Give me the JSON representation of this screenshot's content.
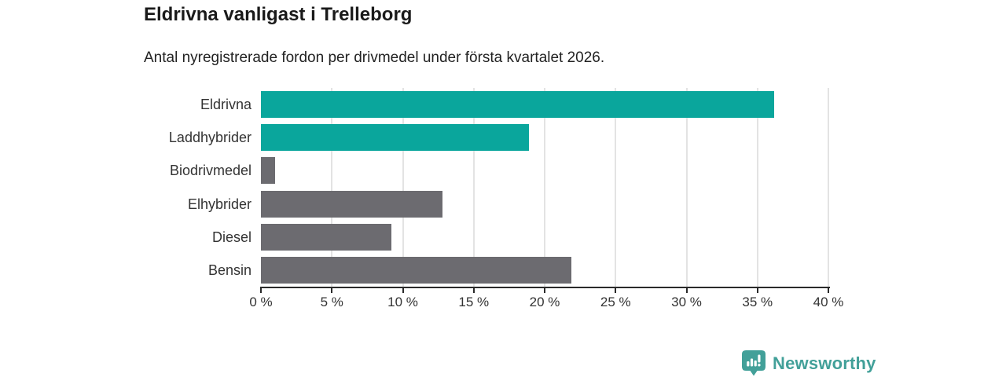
{
  "header": {
    "title": "Eldrivna vanligast i Trelleborg",
    "subtitle": "Antal nyregistrerade fordon per drivmedel under första kvartalet 2026."
  },
  "chart_data": {
    "type": "bar",
    "orientation": "horizontal",
    "title": "Eldrivna vanligast i Trelleborg",
    "subtitle": "Antal nyregistrerade fordon per drivmedel under första kvartalet 2026.",
    "categories": [
      "Eldrivna",
      "Laddhybrider",
      "Biodrivmedel",
      "Elhybrider",
      "Diesel",
      "Bensin"
    ],
    "values": [
      36.2,
      18.9,
      1.0,
      12.8,
      9.2,
      21.9
    ],
    "unit": "%",
    "xlim": [
      0,
      40
    ],
    "x_tick_values": [
      0,
      5,
      10,
      15,
      20,
      25,
      30,
      35,
      40
    ],
    "x_tick_labels": [
      "0 %",
      "5 %",
      "10 %",
      "15 %",
      "20 %",
      "25 %",
      "30 %",
      "35 %",
      "40 %"
    ],
    "grid": true,
    "legend": "none",
    "bar_colors": [
      "#0aa69c",
      "#0aa69c",
      "#6c6b70",
      "#6c6b70",
      "#6c6b70",
      "#6c6b70"
    ],
    "highlight_color": "#0aa69c",
    "default_color": "#6c6b70",
    "gridline_color": "#e3e3e3",
    "axis_color": "#2a2a2a"
  },
  "branding": {
    "logo_text": "Newsworthy",
    "logo_color": "#42a099"
  }
}
